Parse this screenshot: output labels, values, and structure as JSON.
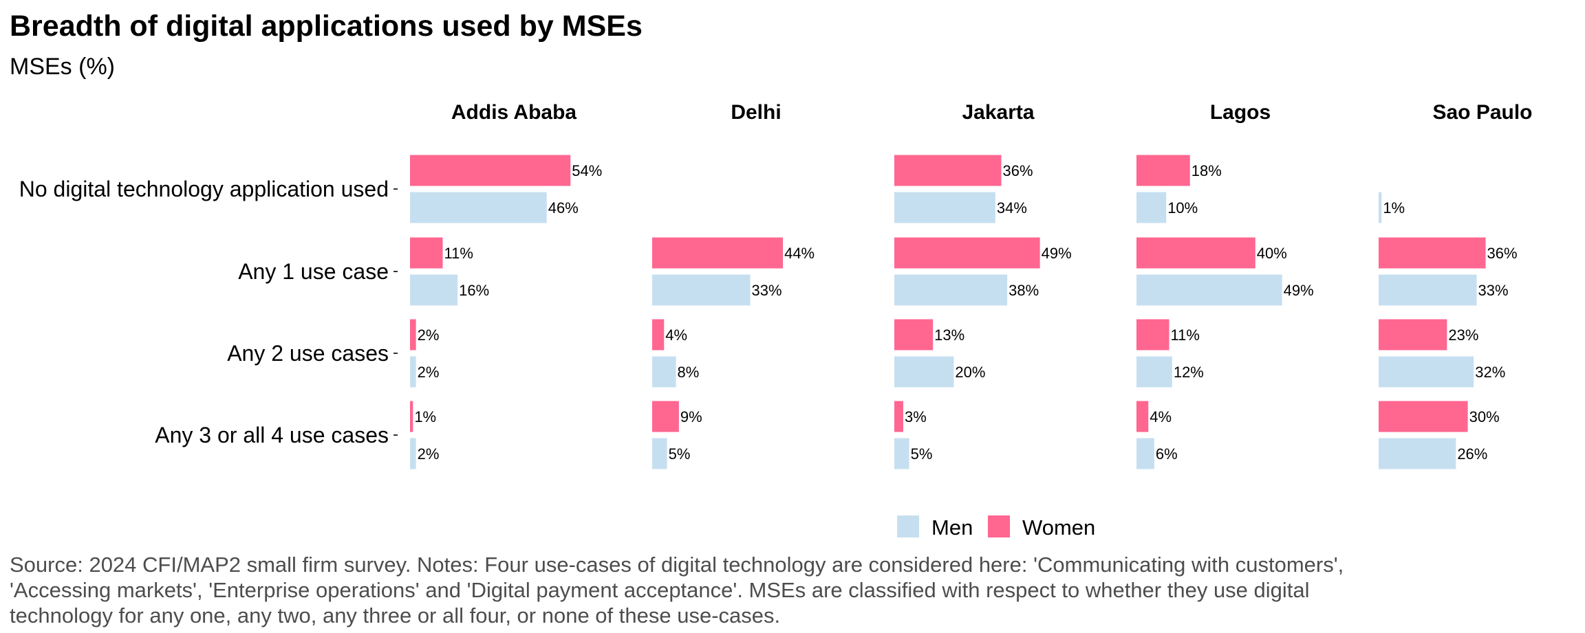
{
  "title": "Breadth of digital applications used by MSEs",
  "subtitle": "MSEs (%)",
  "source_lines": [
    "Source: 2024 CFI/MAP2 small firm survey. Notes: Four use-cases of digital technology are considered here: 'Communicating with customers',",
    "'Accessing markets', 'Enterprise operations' and 'Digital payment acceptance'. MSEs are classified with respect to whether they use digital",
    "technology for any one, any two, any three or all four, or none of these use-cases."
  ],
  "colors": {
    "men": "#c6dff0",
    "women": "#ff6690"
  },
  "chart_data": {
    "type": "bar",
    "orientation": "horizontal",
    "facets": [
      "Addis Ababa",
      "Delhi",
      "Jakarta",
      "Lagos",
      "Sao Paulo"
    ],
    "categories": [
      "No digital technology application used",
      "Any 1 use case",
      "Any 2 use cases",
      "Any 3 or all 4 use cases"
    ],
    "legend": {
      "position": "bottom",
      "items": [
        "Men",
        "Women"
      ]
    },
    "xlim": [
      0,
      60
    ],
    "unit": "%",
    "series": [
      {
        "name": "Women",
        "values": {
          "Addis Ababa": [
            54,
            11,
            2,
            1
          ],
          "Delhi": [
            null,
            44,
            4,
            9
          ],
          "Jakarta": [
            36,
            49,
            13,
            3
          ],
          "Lagos": [
            18,
            40,
            11,
            4
          ],
          "Sao Paulo": [
            null,
            36,
            23,
            30
          ]
        }
      },
      {
        "name": "Men",
        "values": {
          "Addis Ababa": [
            46,
            16,
            2,
            2
          ],
          "Delhi": [
            null,
            33,
            8,
            5
          ],
          "Jakarta": [
            34,
            38,
            20,
            5
          ],
          "Lagos": [
            10,
            49,
            12,
            6
          ],
          "Sao Paulo": [
            1,
            33,
            32,
            26
          ]
        }
      }
    ]
  }
}
